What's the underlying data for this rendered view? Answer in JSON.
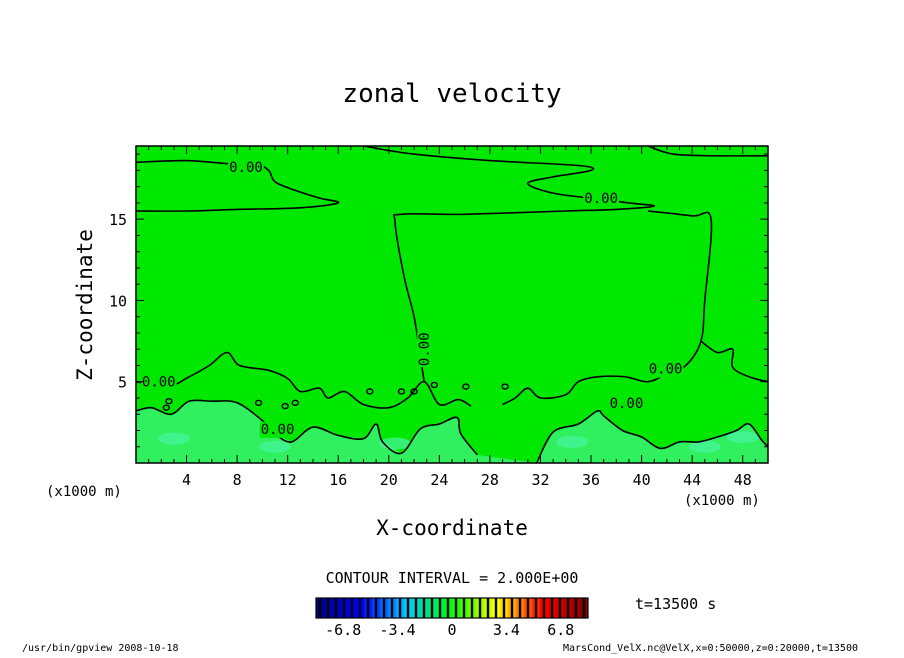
{
  "chart_data": {
    "type": "heatmap",
    "title": "zonal velocity",
    "xlabel": "X-coordinate",
    "ylabel": "Z-coordinate",
    "x_unit_label": "(x1000 m)",
    "y_unit_label": "(x1000 m)",
    "xlim": [
      0,
      50
    ],
    "ylim": [
      0,
      19.5
    ],
    "x_ticks": [
      4,
      8,
      12,
      16,
      20,
      24,
      28,
      32,
      36,
      40,
      44,
      48
    ],
    "y_ticks": [
      5,
      10,
      15
    ],
    "contour_interval_label": "CONTOUR INTERVAL = 2.000E+00",
    "contour_labels": [
      {
        "text": "0.00",
        "x": 8.7,
        "z": 18.2
      },
      {
        "text": "0.00",
        "x": 36.8,
        "z": 16.3
      },
      {
        "text": "0.00",
        "x": 22.8,
        "z": 7.0,
        "rotated": true
      },
      {
        "text": "0.00",
        "x": 41.9,
        "z": 5.8
      },
      {
        "text": "0.00",
        "x": 1.8,
        "z": 5.0
      },
      {
        "text": "0.00",
        "x": 38.8,
        "z": 3.7
      },
      {
        "text": "0.00",
        "x": 11.2,
        "z": 2.1
      }
    ],
    "contour_lines_z": [
      [
        [
          0,
          18.5
        ],
        [
          4,
          18.6
        ],
        [
          7.5,
          18.4
        ],
        [
          9.5,
          18.4
        ],
        [
          10.5,
          18.0
        ],
        [
          11,
          17.3
        ],
        [
          12.5,
          16.8
        ],
        [
          14.5,
          16.3
        ],
        [
          16,
          16.0
        ],
        [
          13,
          15.7
        ],
        [
          8,
          15.6
        ],
        [
          4,
          15.5
        ],
        [
          0,
          15.5
        ]
      ],
      [
        [
          18,
          19.5
        ],
        [
          22,
          19.0
        ],
        [
          28,
          18.6
        ],
        [
          35,
          18.3
        ],
        [
          36,
          18.0
        ],
        [
          33,
          17.6
        ],
        [
          31,
          17.2
        ],
        [
          33,
          16.6
        ],
        [
          37,
          16.2
        ],
        [
          39,
          16.0
        ],
        [
          41,
          15.8
        ],
        [
          38,
          15.6
        ],
        [
          34,
          15.5
        ],
        [
          26,
          15.3
        ],
        [
          21,
          15.3
        ],
        [
          20.5,
          14.8
        ],
        [
          21.2,
          11.5
        ],
        [
          22,
          9.0
        ],
        [
          22.5,
          6.5
        ],
        [
          22.8,
          5.0
        ]
      ],
      [
        [
          40.5,
          19.5
        ],
        [
          42.5,
          19.0
        ],
        [
          46,
          18.9
        ],
        [
          50,
          18.9
        ]
      ],
      [
        [
          40.5,
          15.5
        ],
        [
          44,
          15.2
        ],
        [
          45.5,
          15.0
        ],
        [
          45,
          10.0
        ],
        [
          44.7,
          7.5
        ],
        [
          43.5,
          6.0
        ],
        [
          42,
          5.5
        ],
        [
          40.5,
          5.0
        ],
        [
          38.7,
          5.3
        ],
        [
          36.5,
          5.3
        ],
        [
          35,
          5.0
        ],
        [
          34,
          4.2
        ],
        [
          32,
          4.0
        ],
        [
          31,
          4.6
        ],
        [
          30,
          4.0
        ],
        [
          29,
          3.6
        ]
      ],
      [
        [
          44.7,
          7.5
        ],
        [
          46,
          6.8
        ],
        [
          47.2,
          7.0
        ],
        [
          47.2,
          5.9
        ],
        [
          48.5,
          5.3
        ],
        [
          50,
          5.0
        ]
      ],
      [
        [
          0,
          5.0
        ],
        [
          2.5,
          4.7
        ],
        [
          4.2,
          5.3
        ],
        [
          5.8,
          6.0
        ],
        [
          7.2,
          6.8
        ],
        [
          8.2,
          6.0
        ],
        [
          10.5,
          5.7
        ],
        [
          12,
          5.2
        ],
        [
          13,
          4.4
        ],
        [
          14.5,
          4.6
        ],
        [
          15.2,
          4.0
        ],
        [
          16.5,
          4.4
        ],
        [
          18,
          3.6
        ],
        [
          20,
          3.4
        ],
        [
          21.5,
          4.0
        ],
        [
          22.8,
          5.0
        ],
        [
          24,
          3.6
        ],
        [
          25.5,
          3.9
        ],
        [
          26.5,
          3.5
        ]
      ],
      [
        [
          0,
          3.2
        ],
        [
          1.2,
          3.4
        ],
        [
          2.8,
          3.0
        ],
        [
          4.2,
          3.8
        ],
        [
          6,
          3.8
        ],
        [
          7.5,
          3.8
        ],
        [
          8.5,
          3.5
        ],
        [
          10,
          2.6
        ],
        [
          11,
          1.8
        ],
        [
          12.3,
          1.3
        ],
        [
          14,
          2.2
        ],
        [
          16,
          1.7
        ],
        [
          18,
          1.5
        ],
        [
          19,
          2.4
        ],
        [
          19.5,
          1.3
        ],
        [
          21,
          0.6
        ],
        [
          22.5,
          2.1
        ],
        [
          24,
          2.4
        ],
        [
          25.4,
          2.8
        ],
        [
          25.7,
          1.8
        ],
        [
          27,
          0.5
        ]
      ],
      [
        [
          31.7,
          0
        ],
        [
          33,
          1.9
        ],
        [
          35,
          2.4
        ],
        [
          36.5,
          3.2
        ],
        [
          37,
          2.9
        ],
        [
          38.5,
          2.0
        ],
        [
          40,
          1.6
        ],
        [
          41.5,
          0.9
        ],
        [
          43,
          1.3
        ],
        [
          44.5,
          1.3
        ],
        [
          46,
          1.6
        ],
        [
          47.5,
          2.0
        ],
        [
          48.5,
          2.4
        ],
        [
          49.5,
          1.4
        ],
        [
          50,
          1.0
        ]
      ]
    ],
    "small_loops": [
      {
        "x": 2.6,
        "z": 3.8
      },
      {
        "x": 2.4,
        "z": 3.4
      },
      {
        "x": 9.7,
        "z": 3.7
      },
      {
        "x": 11.8,
        "z": 3.5
      },
      {
        "x": 12.6,
        "z": 3.7
      },
      {
        "x": 18.5,
        "z": 4.4
      },
      {
        "x": 21.0,
        "z": 4.4
      },
      {
        "x": 22.0,
        "z": 4.4
      },
      {
        "x": 23.6,
        "z": 4.8
      },
      {
        "x": 26.1,
        "z": 4.7
      },
      {
        "x": 29.2,
        "z": 4.7
      }
    ],
    "colorbar": {
      "ticks": [
        "-6.8",
        "-3.4",
        "0",
        "3.4",
        "6.8"
      ],
      "vmin": -8.5,
      "vmax": 8.5,
      "colors": [
        "#000080",
        "#0000ff",
        "#00c8ff",
        "#00ff00",
        "#ffff00",
        "#ff0000",
        "#800000"
      ],
      "stripes": 34
    },
    "field_colors": {
      "background": "#00e800",
      "low_band": "#30f060",
      "low_band_spots": "#48f3a0",
      "outer": "#ffffff"
    }
  },
  "time_label": "t=13500 s",
  "footer_left": "/usr/bin/gpview  2008-10-18",
  "footer_right": "MarsCond_VelX.nc@VelX,x=0:50000,z=0:20000,t=13500"
}
